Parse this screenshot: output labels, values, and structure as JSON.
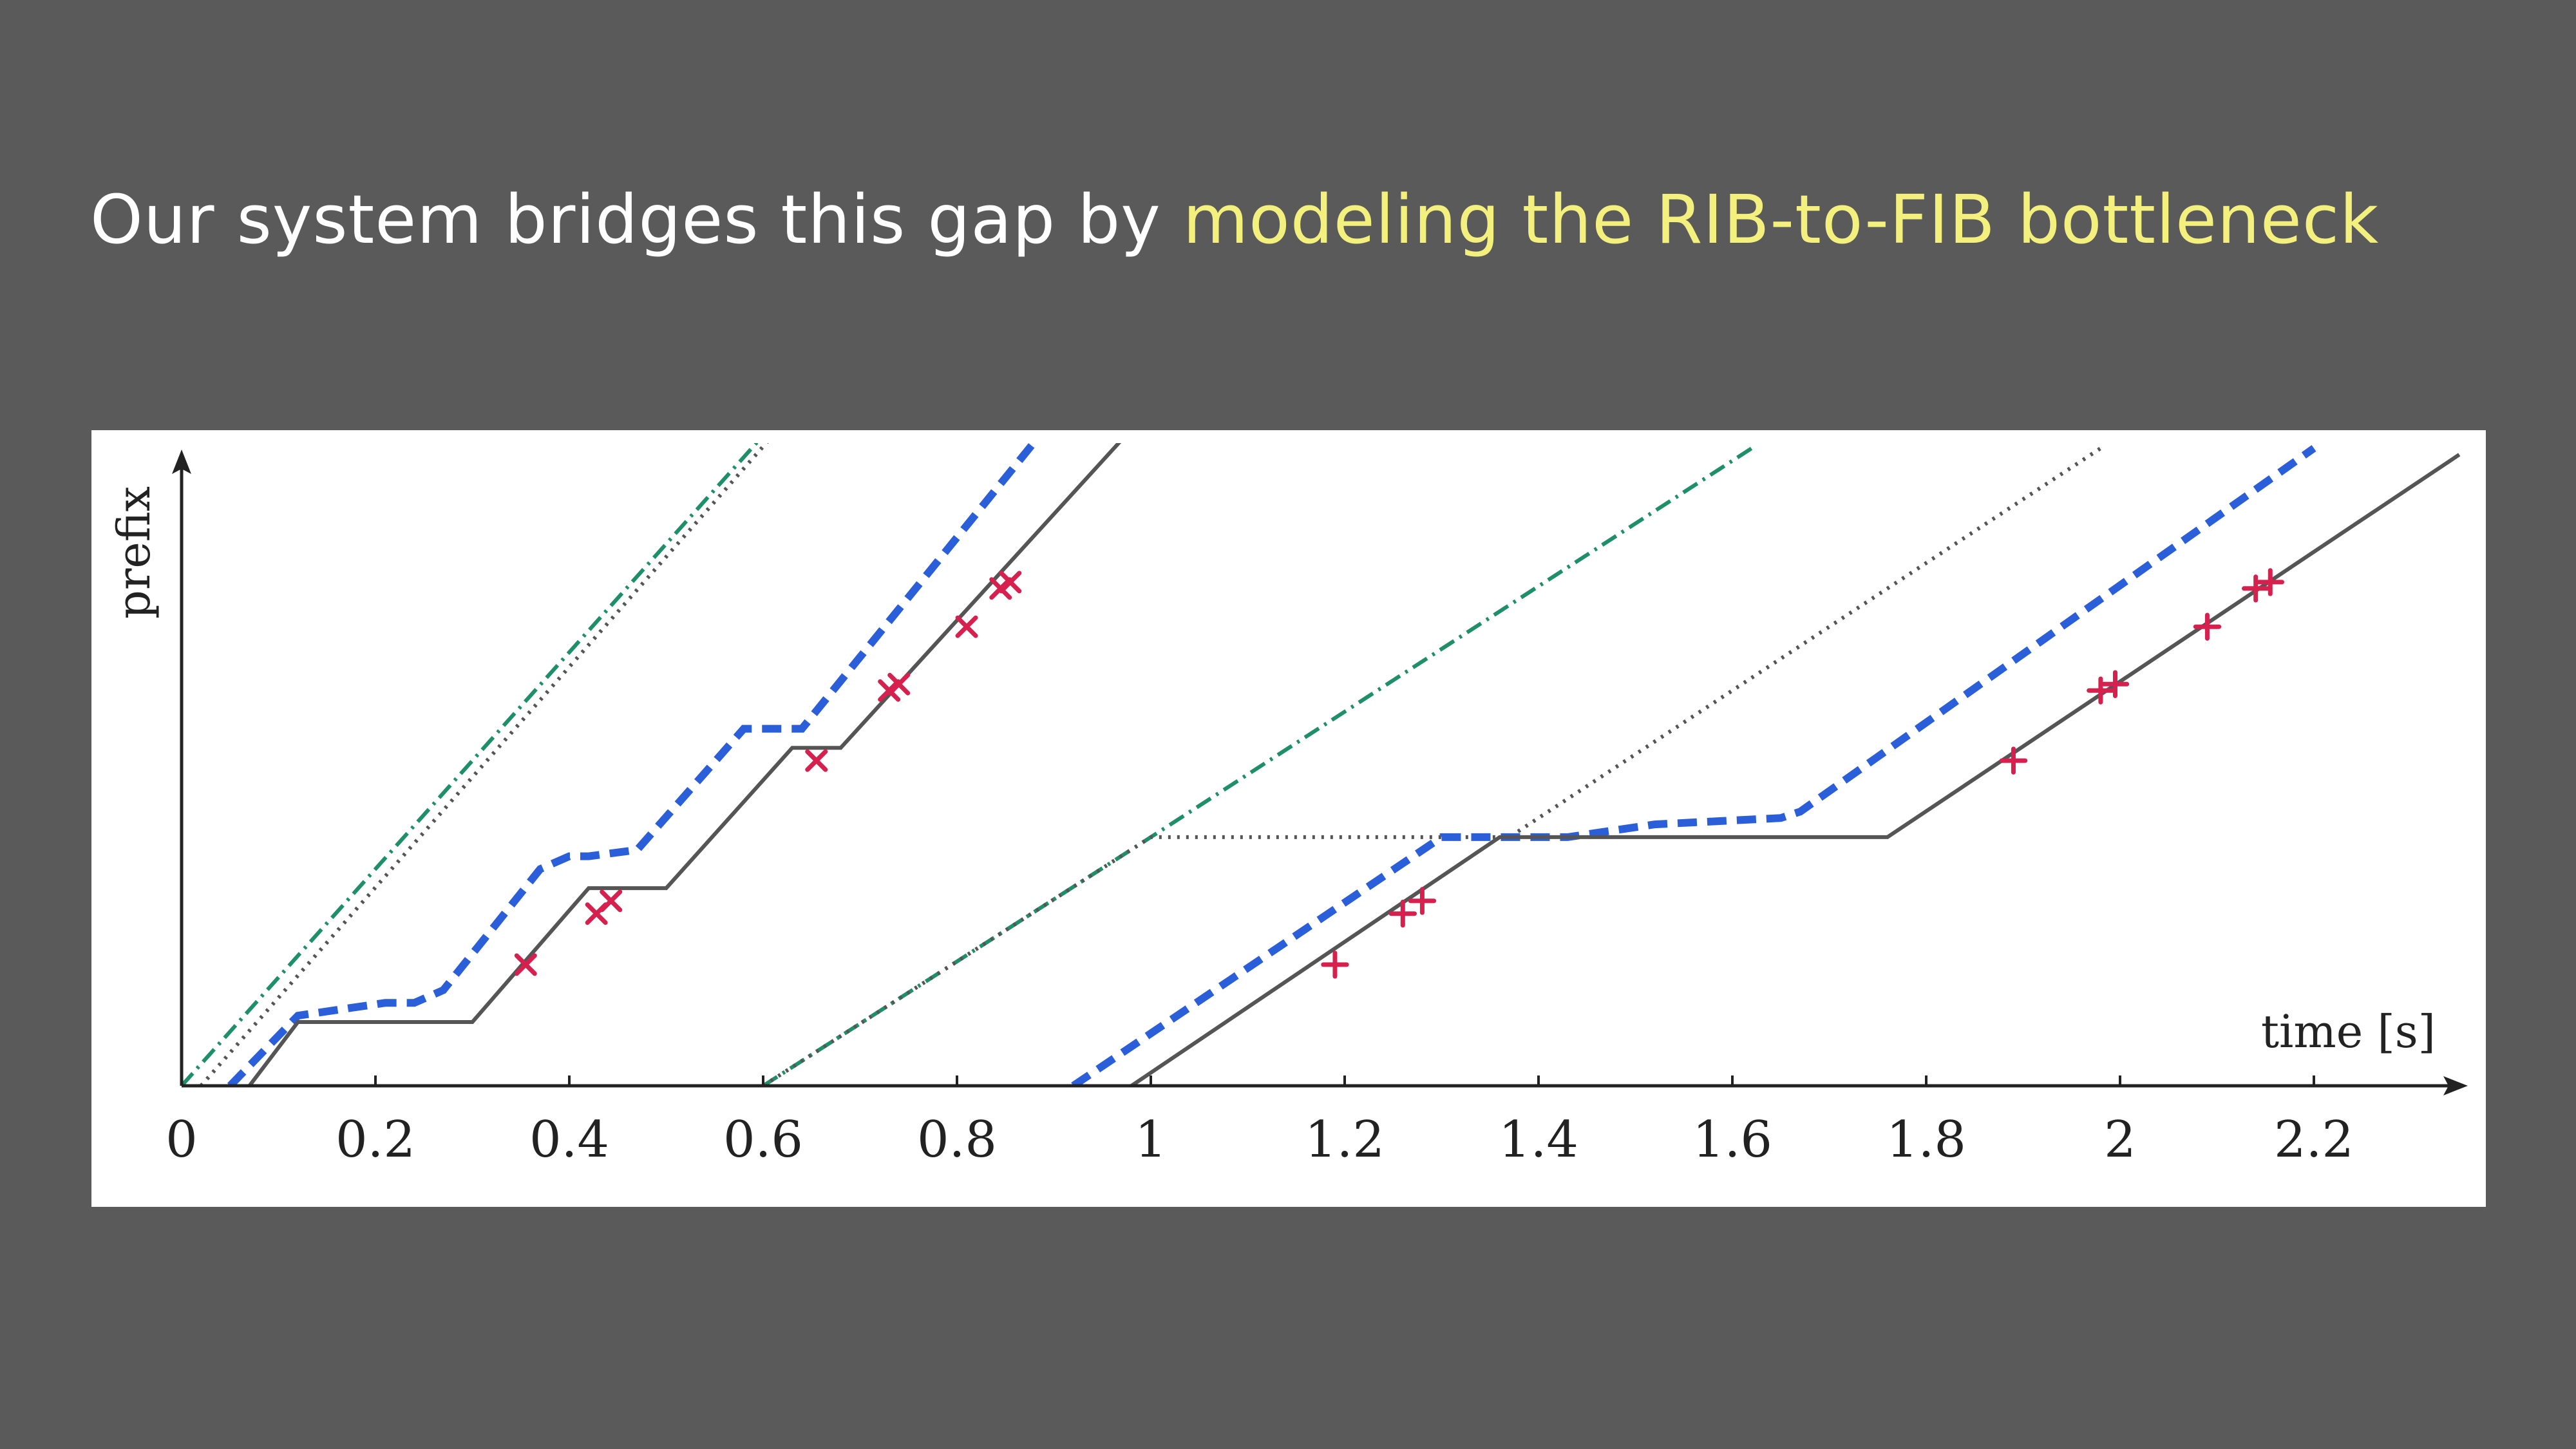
{
  "slide": {
    "title_plain": "Our system bridges this gap by ",
    "title_highlight": "modeling the RIB-to-FIB bottleneck"
  },
  "colors": {
    "background": "#5a5a5a",
    "title": "#ffffff",
    "highlight": "#f4f07e",
    "actual": "#555555",
    "model": "#2b5fd9",
    "ideal": "#1f8f6a",
    "reference": "#555555",
    "marker": "#d6204e"
  },
  "chart_data": {
    "type": "line",
    "xlabel": "time [s]",
    "ylabel": "prefix",
    "xlim": [
      0,
      2.35
    ],
    "ylim": [
      0,
      1
    ],
    "xticks": [
      "0",
      "0.2",
      "0.4",
      "0.6",
      "0.8",
      "1",
      "1.2",
      "1.4",
      "1.6",
      "1.8",
      "2",
      "2.2"
    ],
    "xtick_values": [
      0,
      0.2,
      0.4,
      0.6,
      0.8,
      1,
      1.2,
      1.4,
      1.6,
      1.8,
      2,
      2.2
    ],
    "grid": false,
    "legend": "none",
    "series": [
      {
        "style": "dashdot",
        "color": "#1f8f6a",
        "points": [
          [
            0.0,
            0.0
          ],
          [
            0.6,
            1.02
          ]
        ]
      },
      {
        "style": "dotted",
        "color": "#555555",
        "points": [
          [
            0.02,
            0.0
          ],
          [
            0.61,
            1.02
          ]
        ]
      },
      {
        "style": "dashed",
        "color": "#2b5fd9",
        "points": [
          [
            0.05,
            0.0
          ],
          [
            0.12,
            0.11
          ],
          [
            0.21,
            0.13
          ],
          [
            0.24,
            0.13
          ],
          [
            0.27,
            0.15
          ],
          [
            0.37,
            0.34
          ],
          [
            0.4,
            0.36
          ],
          [
            0.42,
            0.36
          ],
          [
            0.47,
            0.37
          ],
          [
            0.58,
            0.56
          ],
          [
            0.64,
            0.56
          ],
          [
            0.88,
            1.01
          ]
        ]
      },
      {
        "style": "solid",
        "color": "#555555",
        "points": [
          [
            0.07,
            0.0
          ],
          [
            0.12,
            0.1
          ],
          [
            0.3,
            0.1
          ],
          [
            0.42,
            0.31
          ],
          [
            0.5,
            0.31
          ],
          [
            0.63,
            0.53
          ],
          [
            0.68,
            0.53
          ],
          [
            0.98,
            1.03
          ]
        ]
      },
      {
        "style": "dashdot",
        "color": "#1f8f6a",
        "points": [
          [
            0.6,
            0.0
          ],
          [
            1.0,
            0.39
          ],
          [
            1.62,
            1.0
          ]
        ]
      },
      {
        "style": "dotted",
        "color": "#555555",
        "points": [
          [
            0.6,
            0.0
          ],
          [
            1.0,
            0.39
          ],
          [
            1.37,
            0.39
          ],
          [
            1.98,
            1.0
          ]
        ]
      },
      {
        "style": "dashed",
        "color": "#2b5fd9",
        "points": [
          [
            0.92,
            0.0
          ],
          [
            1.3,
            0.39
          ],
          [
            1.43,
            0.39
          ],
          [
            1.52,
            0.41
          ],
          [
            1.65,
            0.42
          ],
          [
            1.67,
            0.43
          ],
          [
            2.2,
            1.0
          ]
        ]
      },
      {
        "style": "solid",
        "color": "#555555",
        "points": [
          [
            0.98,
            0.0
          ],
          [
            1.36,
            0.39
          ],
          [
            1.76,
            0.39
          ],
          [
            2.35,
            0.99
          ]
        ]
      }
    ],
    "markers": [
      {
        "symbol": "x",
        "x": 0.355,
        "y": 0.19
      },
      {
        "symbol": "x",
        "x": 0.428,
        "y": 0.27
      },
      {
        "symbol": "x",
        "x": 0.443,
        "y": 0.29
      },
      {
        "symbol": "x",
        "x": 0.655,
        "y": 0.51
      },
      {
        "symbol": "x",
        "x": 0.73,
        "y": 0.62
      },
      {
        "symbol": "x",
        "x": 0.74,
        "y": 0.63
      },
      {
        "symbol": "x",
        "x": 0.81,
        "y": 0.72
      },
      {
        "symbol": "x",
        "x": 0.845,
        "y": 0.78
      },
      {
        "symbol": "x",
        "x": 0.855,
        "y": 0.79
      },
      {
        "symbol": "plus",
        "x": 1.19,
        "y": 0.19
      },
      {
        "symbol": "plus",
        "x": 1.26,
        "y": 0.27
      },
      {
        "symbol": "plus",
        "x": 1.28,
        "y": 0.29
      },
      {
        "symbol": "plus",
        "x": 1.89,
        "y": 0.51
      },
      {
        "symbol": "plus",
        "x": 1.98,
        "y": 0.62
      },
      {
        "symbol": "plus",
        "x": 1.995,
        "y": 0.63
      },
      {
        "symbol": "plus",
        "x": 2.09,
        "y": 0.72
      },
      {
        "symbol": "plus",
        "x": 2.14,
        "y": 0.78
      },
      {
        "symbol": "plus",
        "x": 2.155,
        "y": 0.79
      }
    ]
  }
}
